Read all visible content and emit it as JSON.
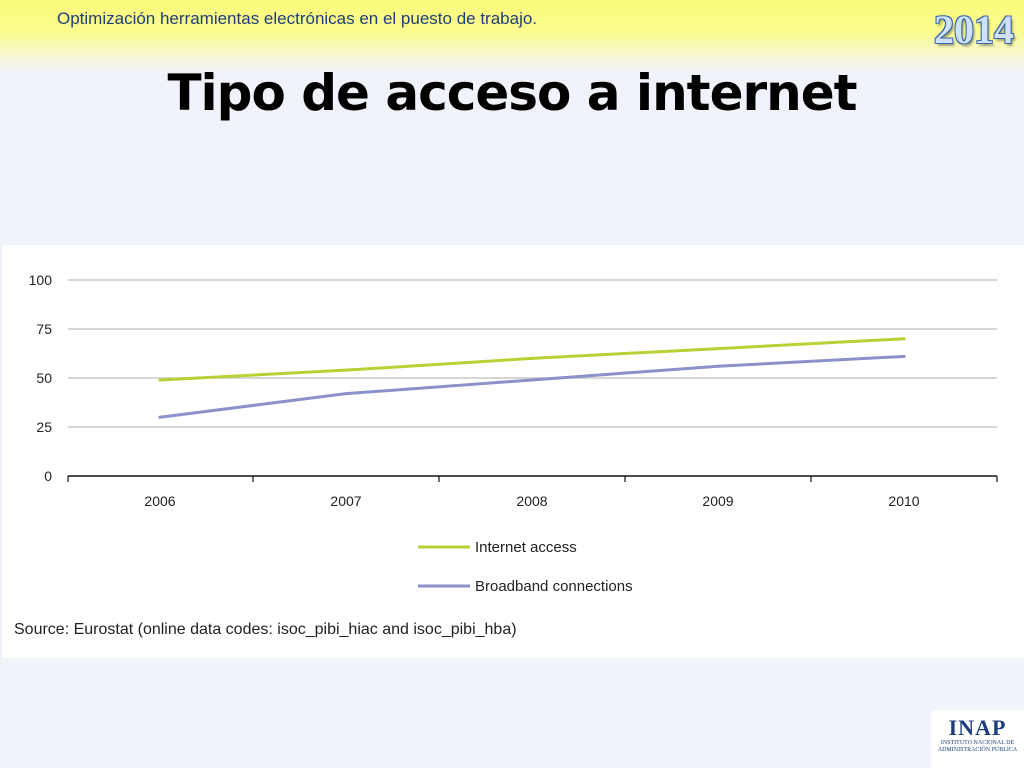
{
  "header": {
    "text": "Optimización herramientas electrónicas en el puesto de trabajo.",
    "year": "2014"
  },
  "slide": {
    "title": "Tipo de acceso a internet"
  },
  "chart_data": {
    "type": "line",
    "categories": [
      "2006",
      "2007",
      "2008",
      "2009",
      "2010"
    ],
    "series": [
      {
        "name": "Internet access",
        "color": "#b5d334",
        "values": [
          49,
          54,
          60,
          65,
          70
        ]
      },
      {
        "name": "Broadband connections",
        "color": "#8b92c9",
        "values": [
          30,
          42,
          49,
          56,
          61
        ]
      }
    ],
    "y_ticks": [
      0,
      25,
      50,
      75,
      100
    ],
    "ylim": [
      0,
      100
    ],
    "grid": true,
    "legend_position": "bottom-center"
  },
  "source": "Source: Eurostat (online data codes: isoc_pibi_hiac and isoc_pibi_hba)",
  "logo": {
    "main": "INAP",
    "line1": "INSTITUTO NACIONAL DE",
    "line2": "ADMINISTRACIÓN PÚBLICA"
  }
}
